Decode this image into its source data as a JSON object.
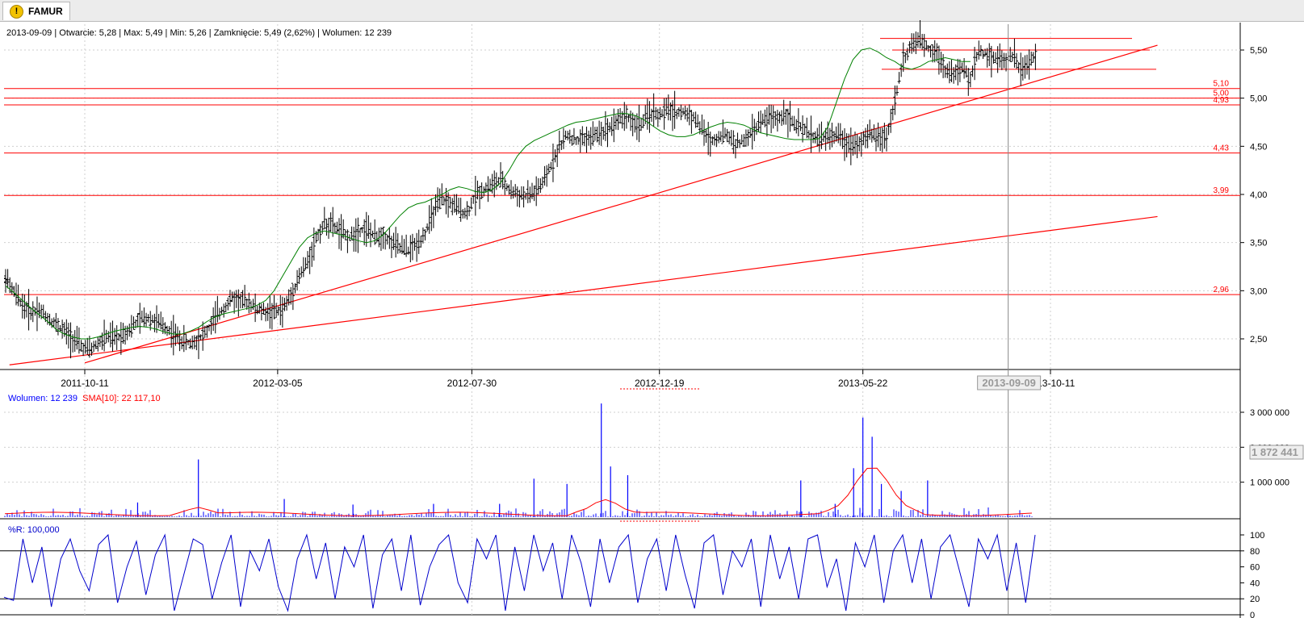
{
  "tab": {
    "title": "FAMUR",
    "icon": "warning-icon"
  },
  "info": {
    "date": "2013-09-09",
    "open": "Otwarcie: 5,28",
    "max": "Max: 5,49",
    "min": "Min: 5,26",
    "close": "Zamknięcie: 5,49 (2,62%)",
    "volume": "Wolumen: 12 239"
  },
  "volume_legend": {
    "volume": "Wolumen: 12 239",
    "sma": "SMA[10]: 22 117,10"
  },
  "wr_legend": {
    "label": "%R: 100,000"
  },
  "colors": {
    "price_bar": "#000000",
    "ma_line": "#008000",
    "levels": "#ff0000",
    "trendlines": "#ff0000",
    "volume": "#0000ff",
    "volume_sma": "#ff0000",
    "williams_r": "#0000cc"
  },
  "chart_data": [
    {
      "type": "ohlc",
      "name": "price",
      "x_tick_labels": [
        "2011-10-11",
        "2012-03-05",
        "2012-07-30",
        "2012-12-19",
        "2013-05-22",
        "2013-09-09",
        "2013-10-11"
      ],
      "cursor_label": "2013-09-09",
      "y_ticks": [
        "2,50",
        "3,00",
        "3,50",
        "4,00",
        "4,50",
        "5,00",
        "5,50"
      ],
      "ylim": [
        2.2,
        5.7
      ],
      "levels": [
        {
          "value": 2.96,
          "label": "2,96"
        },
        {
          "value": 3.99,
          "label": "3,99"
        },
        {
          "value": 4.43,
          "label": "4,43"
        },
        {
          "value": 4.93,
          "label": "4,93"
        },
        {
          "value": 5.0,
          "label": "5,00"
        },
        {
          "value": 5.1,
          "label": "5,10"
        }
      ],
      "trendlines": [
        {
          "from": [
            "2011-10-11",
            2.25
          ],
          "to": [
            "2013-12-31",
            5.55
          ]
        },
        {
          "from": [
            "2011-08-15",
            2.23
          ],
          "to": [
            "2013-12-31",
            3.77
          ]
        }
      ],
      "top_lines": [
        5.62,
        5.5,
        5.3
      ],
      "close": [
        3.12,
        2.98,
        2.85,
        2.78,
        2.8,
        2.72,
        2.65,
        2.58,
        2.5,
        2.42,
        2.38,
        2.45,
        2.52,
        2.5,
        2.55,
        2.62,
        2.7,
        2.72,
        2.68,
        2.62,
        2.55,
        2.48,
        2.45,
        2.5,
        2.58,
        2.72,
        2.82,
        2.92,
        2.9,
        2.88,
        2.8,
        2.78,
        2.78,
        2.8,
        2.95,
        3.15,
        3.3,
        3.55,
        3.7,
        3.68,
        3.6,
        3.55,
        3.62,
        3.65,
        3.55,
        3.58,
        3.5,
        3.45,
        3.42,
        3.48,
        3.6,
        3.82,
        3.95,
        3.9,
        3.85,
        3.8,
        4.0,
        4.05,
        4.1,
        4.15,
        4.05,
        4.0,
        3.98,
        4.02,
        4.1,
        4.3,
        4.5,
        4.62,
        4.55,
        4.58,
        4.6,
        4.65,
        4.7,
        4.78,
        4.82,
        4.72,
        4.75,
        4.85,
        4.82,
        4.88,
        4.85,
        4.85,
        4.8,
        4.68,
        4.55,
        4.6,
        4.62,
        4.52,
        4.55,
        4.65,
        4.75,
        4.8,
        4.78,
        4.85,
        4.72,
        4.68,
        4.62,
        4.58,
        4.6,
        4.62,
        4.55,
        4.52,
        4.55,
        4.62,
        4.6,
        4.58,
        4.98,
        5.4,
        5.55,
        5.6,
        5.52,
        5.48,
        5.3,
        5.25,
        5.3,
        5.2,
        5.5,
        5.45,
        5.42,
        5.4,
        5.45,
        5.3,
        5.35,
        5.49
      ],
      "sma_close": [
        3.05,
        2.98,
        2.9,
        2.82,
        2.75,
        2.68,
        2.6,
        2.55,
        2.52,
        2.5,
        2.5,
        2.52,
        2.55,
        2.58,
        2.6,
        2.62,
        2.63,
        2.62,
        2.6,
        2.57,
        2.55,
        2.55,
        2.58,
        2.62,
        2.68,
        2.73,
        2.76,
        2.78,
        2.8,
        2.82,
        2.85,
        2.9,
        3.0,
        3.15,
        3.3,
        3.45,
        3.55,
        3.6,
        3.62,
        3.6,
        3.58,
        3.55,
        3.52,
        3.5,
        3.52,
        3.58,
        3.68,
        3.78,
        3.86,
        3.9,
        3.92,
        3.96,
        4.0,
        4.05,
        4.08,
        4.06,
        4.03,
        4.02,
        4.05,
        4.12,
        4.25,
        4.4,
        4.5,
        4.56,
        4.6,
        4.64,
        4.68,
        4.72,
        4.75,
        4.76,
        4.78,
        4.8,
        4.82,
        4.84,
        4.84,
        4.82,
        4.78,
        4.72,
        4.66,
        4.62,
        4.6,
        4.6,
        4.62,
        4.66,
        4.7,
        4.73,
        4.75,
        4.74,
        4.72,
        4.68,
        4.64,
        4.62,
        4.6,
        4.58,
        4.57,
        4.57,
        4.57,
        4.58,
        4.7,
        4.95,
        5.2,
        5.4,
        5.5,
        5.52,
        5.48,
        5.42,
        5.38,
        5.32,
        5.3,
        5.33,
        5.38,
        5.4,
        5.42,
        5.4,
        5.38,
        5.38
      ]
    },
    {
      "type": "bar",
      "name": "volume",
      "y_ticks": [
        "1 000 000",
        "2 000 000",
        "3 000 000"
      ],
      "cursor_value_label": "1 872 441",
      "ylim": [
        0,
        3300000
      ],
      "spikes": [
        [
          "2011-11-20",
          420000
        ],
        [
          "2012-01-05",
          1650000
        ],
        [
          "2012-03-10",
          520000
        ],
        [
          "2012-05-01",
          360000
        ],
        [
          "2012-07-01",
          380000
        ],
        [
          "2012-08-20",
          380000
        ],
        [
          "2012-09-15",
          1100000
        ],
        [
          "2012-10-10",
          950000
        ],
        [
          "2012-11-05",
          3250000
        ],
        [
          "2012-11-12",
          1450000
        ],
        [
          "2012-11-25",
          1200000
        ],
        [
          "2013-04-05",
          1050000
        ],
        [
          "2013-05-01",
          380000
        ],
        [
          "2013-05-15",
          1400000
        ],
        [
          "2013-05-22",
          2850000
        ],
        [
          "2013-05-29",
          2300000
        ],
        [
          "2013-06-05",
          950000
        ],
        [
          "2013-06-20",
          750000
        ],
        [
          "2013-07-10",
          1050000
        ],
        [
          "2013-09-09",
          12239
        ]
      ],
      "sma_label": "SMA[10]"
    },
    {
      "type": "line",
      "name": "%R",
      "y_ticks": [
        "0",
        "20",
        "40",
        "60",
        "80",
        "100"
      ],
      "ylim": [
        0,
        100
      ],
      "reference_lines": [
        20,
        80
      ],
      "values": [
        22,
        18,
        95,
        40,
        85,
        10,
        70,
        95,
        55,
        30,
        88,
        100,
        15,
        60,
        92,
        25,
        75,
        100,
        5,
        50,
        95,
        88,
        20,
        65,
        100,
        10,
        80,
        55,
        95,
        35,
        5,
        70,
        100,
        45,
        90,
        20,
        85,
        60,
        100,
        8,
        75,
        95,
        30,
        100,
        12,
        60,
        88,
        100,
        40,
        15,
        95,
        70,
        100,
        5,
        85,
        30,
        100,
        55,
        90,
        20,
        100,
        65,
        10,
        95,
        40,
        85,
        100,
        15,
        70,
        95,
        30,
        100,
        50,
        8,
        90,
        100,
        25,
        80,
        60,
        95,
        10,
        100,
        45,
        85,
        20,
        95,
        100,
        35,
        70,
        5,
        90,
        60,
        100,
        15,
        80,
        100,
        40,
        95,
        20,
        85,
        100,
        55,
        10,
        95,
        70,
        100,
        30,
        90,
        15,
        100
      ]
    }
  ]
}
